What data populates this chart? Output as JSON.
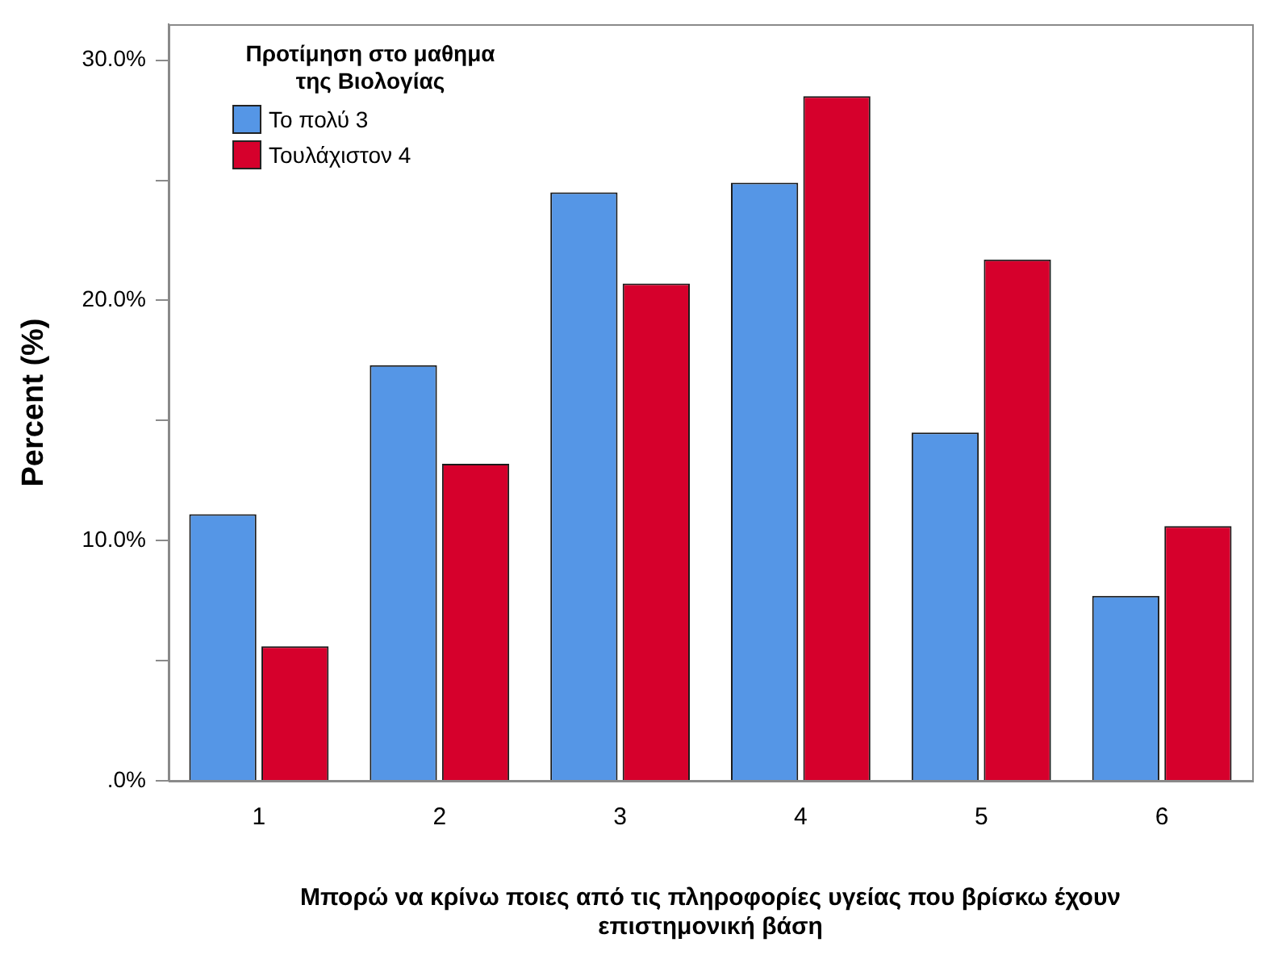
{
  "chart_data": {
    "type": "bar",
    "xlabel": "Μπορώ να κρίνω ποιες από τις πληροφορίες υγείας που βρίσκω έχουν επιστημονική βάση",
    "ylabel": "Percent (%)",
    "legend_title": "Προτίμηση στο μαθημα της Βιολογίας",
    "categories": [
      "1",
      "2",
      "3",
      "4",
      "5",
      "6"
    ],
    "series": [
      {
        "name": "Το πολύ 3",
        "color": "#5596e6",
        "values": [
          11.1,
          17.3,
          24.5,
          24.9,
          14.5,
          7.7
        ]
      },
      {
        "name": "Τουλάχιστον 4",
        "color": "#d6002c",
        "values": [
          5.6,
          13.2,
          20.7,
          28.5,
          21.7,
          10.6
        ]
      }
    ],
    "ylim": [
      0,
      31.5
    ],
    "yticks": [
      {
        "value": 0,
        "label": ".0%"
      },
      {
        "value": 5,
        "label": null
      },
      {
        "value": 10,
        "label": "10.0%"
      },
      {
        "value": 15,
        "label": null
      },
      {
        "value": 20,
        "label": "20.0%"
      },
      {
        "value": 25,
        "label": null
      },
      {
        "value": 30,
        "label": "30.0%"
      }
    ],
    "grid": false,
    "legend": "top left"
  }
}
